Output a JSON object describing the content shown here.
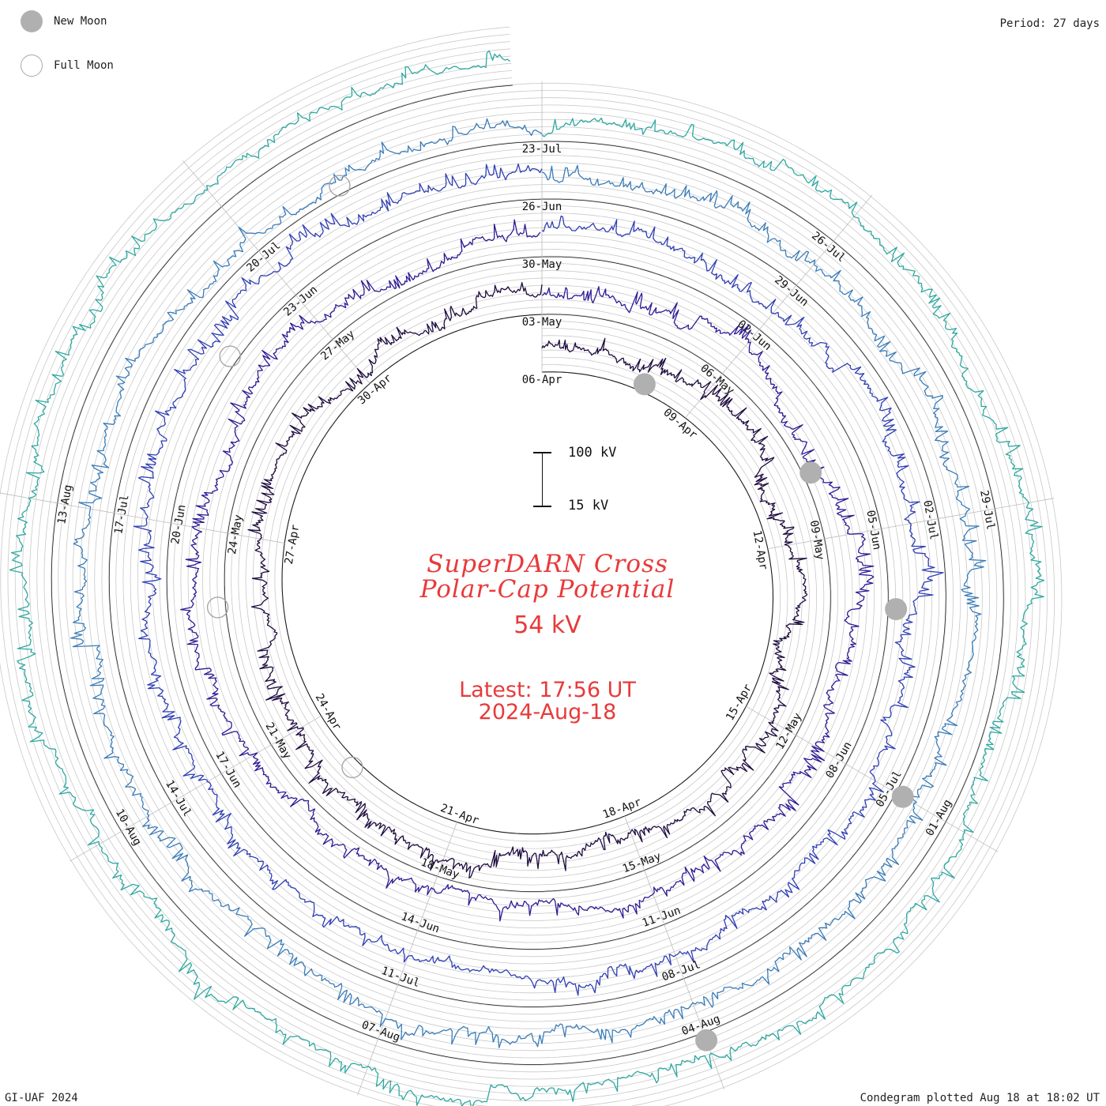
{
  "header": {
    "period": "Period: 27 days"
  },
  "legend": {
    "new_moon": "New Moon",
    "full_moon": "Full Moon"
  },
  "center": {
    "title_line1": "SuperDARN Cross",
    "title_line2": "Polar-Cap Potential",
    "current_value": "54 kV",
    "latest_line1": "Latest: 17:56 UT",
    "latest_line2": "2024-Aug-18"
  },
  "scale": {
    "top_label": "100 kV",
    "bottom_label": "15 kV"
  },
  "footer": {
    "credit": "GI-UAF 2024",
    "plotted": "Condegram plotted Aug 18 at 18:02 UT"
  },
  "colors": {
    "text_red": "#e83a3a",
    "rotations": [
      "#1f0c40",
      "#2e1a94",
      "#2f3fb4",
      "#3a7cb8",
      "#2fa8a0",
      "#3cc07a",
      "#76c43a",
      "#b4b72e",
      "#c08a24",
      "#b85a18",
      "#b52010"
    ]
  },
  "chart_data": {
    "type": "condegram",
    "title": "SuperDARN Cross Polar-Cap Potential",
    "period_days": 27,
    "unit": "kV",
    "scale_range_kv": [
      15,
      100
    ],
    "start_date": "2024-04-06",
    "end_date": "2024-08-18",
    "date_labels": [
      "06-Apr",
      "09-Apr",
      "12-Apr",
      "15-Apr",
      "18-Apr",
      "21-Apr",
      "24-Apr",
      "27-Apr",
      "30-Apr",
      "03-May",
      "06-May",
      "09-May",
      "12-May",
      "15-May",
      "18-May",
      "21-May",
      "24-May",
      "27-May",
      "30-May",
      "02-Jun",
      "05-Jun",
      "08-Jun",
      "11-Jun",
      "14-Jun",
      "17-Jun",
      "20-Jun",
      "23-Jun",
      "26-Jun",
      "29-Jun",
      "02-Jul",
      "05-Jul",
      "08-Jul",
      "11-Jul",
      "14-Jul",
      "17-Jul",
      "20-Jul",
      "23-Jul",
      "26-Jul",
      "29-Jul",
      "01-Aug",
      "04-Aug",
      "07-Aug",
      "10-Aug",
      "13-Aug"
    ],
    "series": [
      {
        "label_dates": [
          "06-Apr",
          "09-Apr",
          "12-Apr",
          "15-Apr",
          "18-Apr",
          "21-Apr",
          "24-Apr",
          "27-Apr",
          "30-Apr"
        ],
        "level_kv": 55
      },
      {
        "label_dates": [
          "03-May",
          "06-May",
          "09-May",
          "12-May",
          "15-May",
          "18-May",
          "21-May",
          "24-May",
          "27-May"
        ],
        "level_kv": 52
      },
      {
        "label_dates": [
          "30-May",
          "02-Jun",
          "05-Jun",
          "08-Jun",
          "11-Jun",
          "14-Jun",
          "17-Jun",
          "20-Jun",
          "23-Jun"
        ],
        "level_kv": 50
      },
      {
        "label_dates": [
          "26-Jun",
          "29-Jun",
          "02-Jul",
          "05-Jul",
          "08-Jul",
          "11-Jul",
          "14-Jul",
          "17-Jul",
          "20-Jul"
        ],
        "level_kv": 52
      },
      {
        "label_dates": [
          "23-Jul",
          "26-Jul",
          "29-Jul",
          "01-Aug",
          "04-Aug",
          "07-Aug",
          "10-Aug",
          "13-Aug"
        ],
        "level_kv": 54
      }
    ],
    "new_moon_dates": [
      "2024-04-08",
      "2024-05-08",
      "2024-06-06",
      "2024-07-05",
      "2024-08-04"
    ],
    "full_moon_dates": [
      "2024-04-23",
      "2024-05-23",
      "2024-06-22",
      "2024-07-21"
    ]
  }
}
